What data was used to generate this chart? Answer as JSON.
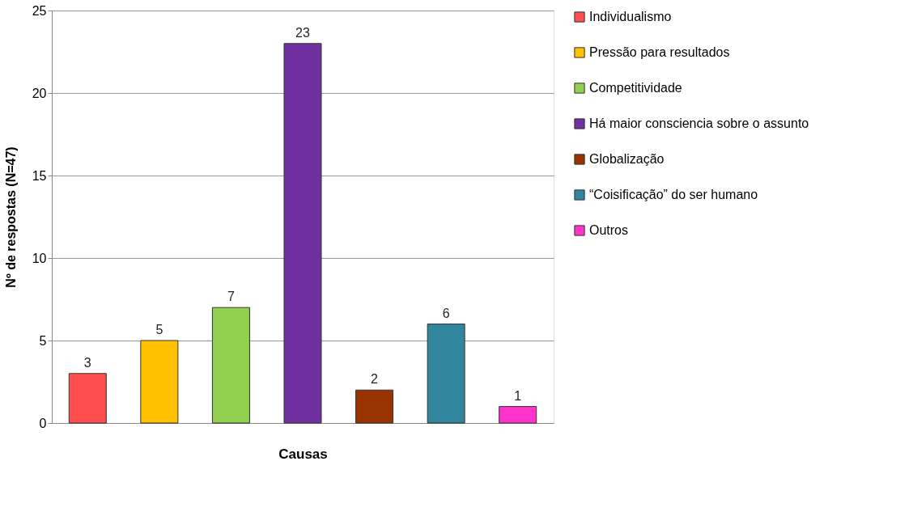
{
  "chart_data": {
    "type": "bar",
    "xlabel": "Causas",
    "ylabel": "Nº de respostas (N=47)",
    "categories": [
      null,
      null,
      null,
      null,
      null,
      null,
      null
    ],
    "series": [
      {
        "name": "Individualismo",
        "color": "#ff5050",
        "values": [
          3,
          null,
          null,
          null,
          null,
          null,
          null
        ]
      },
      {
        "name": "Pressão para resultados",
        "color": "#ffc000",
        "values": [
          null,
          5,
          null,
          null,
          null,
          null,
          null
        ]
      },
      {
        "name": "Competitividade",
        "color": "#92d050",
        "values": [
          null,
          null,
          7,
          null,
          null,
          null,
          null
        ]
      },
      {
        "name": "Há maior consciencia sobre o assunto",
        "color": "#7030a0",
        "values": [
          null,
          null,
          null,
          23,
          null,
          null,
          null
        ]
      },
      {
        "name": "Globalização",
        "color": "#993300",
        "values": [
          null,
          null,
          null,
          null,
          2,
          null,
          null
        ]
      },
      {
        "name": "“Coisificação” do ser humano",
        "color": "#31859c",
        "values": [
          null,
          null,
          null,
          null,
          null,
          6,
          null
        ]
      },
      {
        "name": "Outros",
        "color": "#ff33cc",
        "values": [
          null,
          null,
          null,
          null,
          null,
          null,
          1
        ]
      }
    ],
    "ylim": [
      0,
      25
    ],
    "yticks": [
      0,
      5,
      10,
      15,
      20,
      25
    ],
    "grid": "y",
    "legend": "right",
    "tick_labels": "y",
    "data_labels": true
  }
}
